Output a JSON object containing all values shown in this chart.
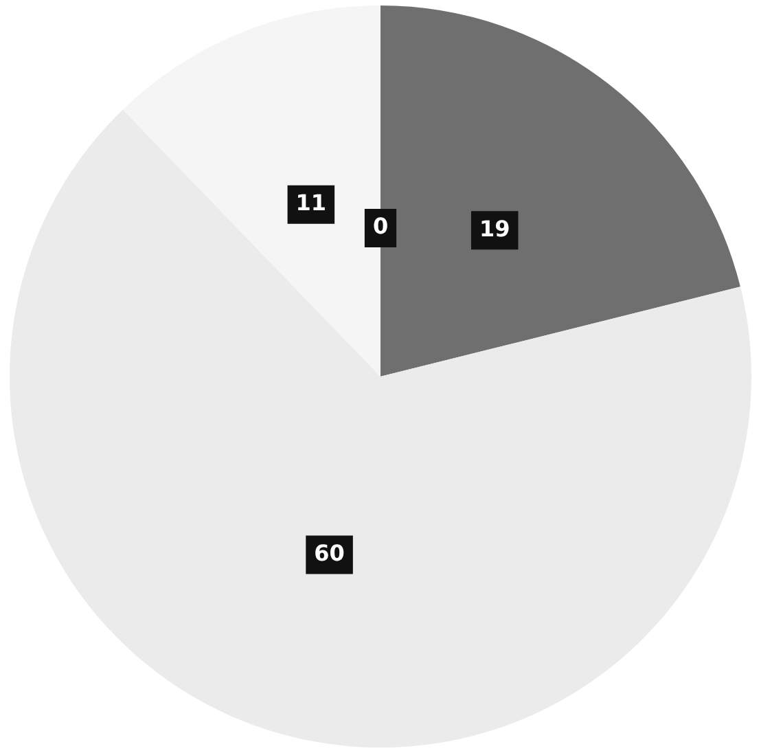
{
  "chart_data": {
    "type": "pie",
    "categories": [
      null,
      null,
      null,
      null
    ],
    "values": [
      0,
      19,
      60,
      11
    ],
    "value_labels": [
      "0",
      "19",
      "60",
      "11"
    ],
    "colors": [
      "#5a5a5a",
      "#6f6f6f",
      "#ebebeb",
      "#f5f5f5"
    ]
  }
}
